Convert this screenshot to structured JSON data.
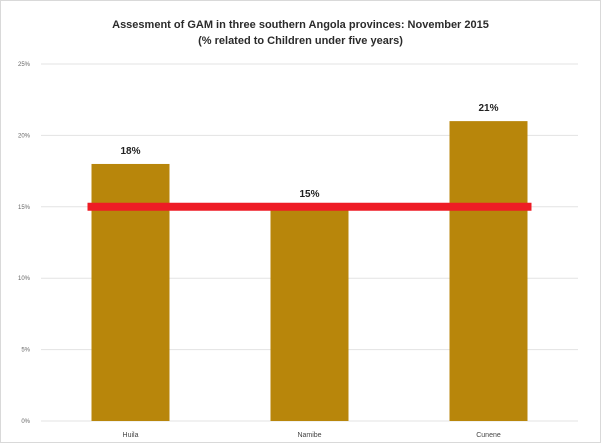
{
  "chart_data": {
    "type": "bar",
    "title": "Assesment of GAM in three southern Angola provinces: November 2015",
    "subtitle": "(% related to Children under five years)",
    "xlabel": "",
    "ylabel": "",
    "categories": [
      "Huila",
      "Namibe",
      "Cunene"
    ],
    "values": [
      18,
      15,
      21
    ],
    "data_labels": [
      "18%",
      "15%",
      "21%"
    ],
    "yticks": [
      0,
      5,
      10,
      15,
      20,
      25
    ],
    "ytick_labels": [
      "0%",
      "5%",
      "10%",
      "15%",
      "20%",
      "25%"
    ],
    "ylim": [
      0,
      25
    ],
    "threshold": 15,
    "grid": true,
    "legend": "none",
    "colors": {
      "bar": "#b8860b",
      "threshold_line": "#ee1c25",
      "grid": "#e3e3e3"
    }
  }
}
